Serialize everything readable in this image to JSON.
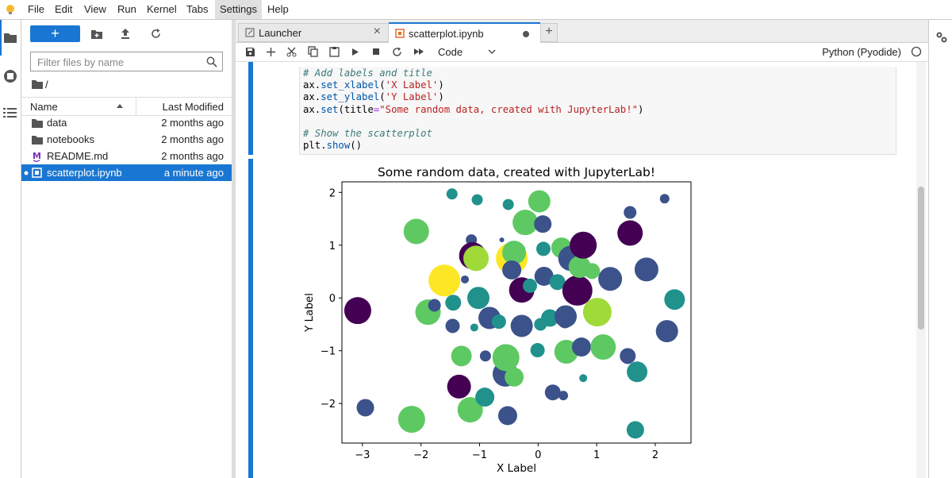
{
  "menu": [
    "File",
    "Edit",
    "View",
    "Run",
    "Kernel",
    "Tabs",
    "Settings",
    "Help"
  ],
  "file_browser": {
    "filter_placeholder": "Filter files by name",
    "path": "/",
    "columns": [
      "Name",
      "Last Modified"
    ],
    "files": [
      {
        "name": "data",
        "modified": "2 months ago"
      },
      {
        "name": "notebooks",
        "modified": "2 months ago"
      },
      {
        "name": "README.md",
        "modified": "2 months ago"
      },
      {
        "name": "scatterplot.ipynb",
        "modified": "a minute ago"
      }
    ]
  },
  "tabs": [
    "Launcher",
    "scatterplot.ipynb"
  ],
  "toolbar": {
    "cell_type": "Code",
    "kernel": "Python (Pyodide)"
  },
  "code": {
    "lines": [
      [
        {
          "text": "# Add labels and title",
          "color": "#3d7a7a"
        }
      ],
      [
        {
          "text": "ax.",
          "color": "#000000"
        },
        {
          "text": "set_xlabel",
          "color": "#0055aa"
        },
        {
          "text": "(",
          "color": "#000000"
        },
        {
          "text": "'X Label'",
          "color": "#ba2121"
        },
        {
          "text": ")",
          "color": "#000000"
        }
      ],
      [
        {
          "text": "ax.",
          "color": "#000000"
        },
        {
          "text": "set_ylabel",
          "color": "#0055aa"
        },
        {
          "text": "(",
          "color": "#000000"
        },
        {
          "text": "'Y Label'",
          "color": "#ba2121"
        },
        {
          "text": ")",
          "color": "#000000"
        }
      ],
      [
        {
          "text": "ax.",
          "color": "#000000"
        },
        {
          "text": "set",
          "color": "#0055aa"
        },
        {
          "text": "(title",
          "color": "#000000"
        },
        {
          "text": "=",
          "color": "#aa22ff"
        },
        {
          "text": "\"Some random data, created with JupyterLab!\"",
          "color": "#ba2121"
        },
        {
          "text": ")",
          "color": "#000000"
        }
      ],
      [],
      [
        {
          "text": "# Show the scatterplot",
          "color": "#3d7a7a"
        }
      ],
      [
        {
          "text": "plt.",
          "color": "#000000"
        },
        {
          "text": "show",
          "color": "#0055aa"
        },
        {
          "text": "()",
          "color": "#000000"
        }
      ]
    ]
  },
  "chart_data": {
    "type": "scatter",
    "title": "Some random data, created with JupyterLab!",
    "x_label": "X Label",
    "y_label": "Y Label",
    "xlim": [
      -3.35,
      2.61
    ],
    "ylim": [
      -2.75,
      2.2
    ],
    "xticks": [
      {
        "value": -3,
        "label": "−3"
      },
      {
        "value": -2,
        "label": "−2"
      },
      {
        "value": -1,
        "label": "−1"
      },
      0,
      1,
      2
    ],
    "yticks": [
      {
        "value": -2,
        "label": "−2"
      },
      {
        "value": -1,
        "label": "−1"
      },
      0,
      1,
      2
    ],
    "x": [
      -3.08,
      -2.95,
      -2.16,
      -2.08,
      -1.88,
      -1.77,
      -1.6,
      -1.47,
      -1.35,
      -1.31,
      -1.46,
      -1.45,
      -1.16,
      -1.14,
      -1.12,
      -1.06,
      -1.04,
      -0.91,
      -0.9,
      -1.02,
      -0.83,
      -0.56,
      -0.55,
      -0.52,
      -0.51,
      -0.45,
      -0.41,
      -0.45,
      -0.28,
      -0.28,
      -0.22,
      -0.41,
      -0.14,
      0.02,
      0.08,
      0.1,
      -0.01,
      0.04,
      0.2,
      0.25,
      0.33,
      0.4,
      0.43,
      0.46,
      0.47,
      0.48,
      0.56,
      0.67,
      0.71,
      0.74,
      0.77,
      0.77,
      0.92,
      1.01,
      1.11,
      1.23,
      1.53,
      1.57,
      1.57,
      1.69,
      1.66,
      1.85,
      2.16,
      2.2,
      2.33,
      -0.62,
      -1.25,
      -1.09,
      -0.67,
      0.09
    ],
    "y": [
      -0.24,
      -2.08,
      -2.3,
      1.26,
      -0.27,
      -0.14,
      0.33,
      1.97,
      -1.68,
      -1.1,
      -0.53,
      -0.09,
      -2.12,
      1.1,
      0.8,
      0.75,
      1.86,
      -1.88,
      -1.1,
      0.0,
      -0.38,
      -1.44,
      -1.13,
      -2.23,
      1.77,
      0.75,
      0.86,
      0.53,
      0.15,
      -0.53,
      1.43,
      -1.5,
      0.23,
      1.83,
      1.4,
      0.41,
      -0.99,
      -0.5,
      -0.38,
      -1.79,
      0.3,
      0.95,
      -1.85,
      -0.44,
      -0.35,
      -1.02,
      0.75,
      0.14,
      0.59,
      -0.93,
      1.0,
      -1.52,
      0.51,
      -0.27,
      -0.93,
      0.36,
      -1.1,
      1.62,
      1.23,
      -1.4,
      -2.5,
      0.54,
      1.88,
      -0.63,
      -0.03,
      1.1,
      0.35,
      -0.56,
      -0.45,
      0.93
    ],
    "sizes": [
      17,
      11,
      17,
      16,
      16,
      8,
      20,
      7,
      15,
      13,
      9,
      10,
      16,
      7,
      17,
      16,
      7,
      12,
      7,
      14,
      14,
      16,
      17,
      12,
      7,
      20,
      15,
      12,
      16,
      14,
      16,
      12,
      9,
      14,
      11,
      12,
      9,
      8,
      11,
      10,
      10,
      13,
      6,
      9,
      14,
      15,
      16,
      19,
      14,
      12,
      17,
      5,
      10,
      18,
      16,
      15,
      10,
      8,
      16,
      13,
      11,
      15,
      6,
      14,
      13,
      3,
      5,
      5,
      9,
      9
    ],
    "colors": [
      "#440154",
      "#3b528b",
      "#5ec962",
      "#5ec962",
      "#5ec962",
      "#3b528b",
      "#fde725",
      "#21918c",
      "#440154",
      "#5ec962",
      "#3b528b",
      "#21918c",
      "#5ec962",
      "#3b528b",
      "#440154",
      "#a0da39",
      "#21918c",
      "#21918c",
      "#3b528b",
      "#21918c",
      "#3b528b",
      "#3b528b",
      "#5ec962",
      "#3b528b",
      "#21918c",
      "#fde725",
      "#5ec962",
      "#3b528b",
      "#440154",
      "#3b528b",
      "#5ec962",
      "#5ec962",
      "#21918c",
      "#5ec962",
      "#3b528b",
      "#3b528b",
      "#21918c",
      "#21918c",
      "#21918c",
      "#3b528b",
      "#21918c",
      "#5ec962",
      "#3b528b",
      "#3b528b",
      "#3b528b",
      "#5ec962",
      "#3b528b",
      "#440154",
      "#5ec962",
      "#3b528b",
      "#440154",
      "#21918c",
      "#5ec962",
      "#a0da39",
      "#5ec962",
      "#3b528b",
      "#3b528b",
      "#3b528b",
      "#440154",
      "#21918c",
      "#21918c",
      "#3b528b",
      "#3b528b",
      "#3b528b",
      "#21918c",
      "#3b528b",
      "#3b528b",
      "#21918c",
      "#21918c",
      "#21918c"
    ]
  }
}
